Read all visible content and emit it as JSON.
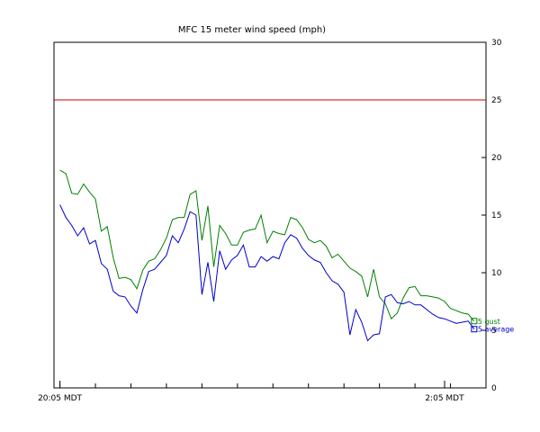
{
  "chart_data": {
    "type": "line",
    "title": "MFC 15 meter wind speed (mph)",
    "xlabel": "",
    "ylabel": "",
    "ylim": [
      0,
      30
    ],
    "y_ticks": [
      0,
      5,
      10,
      15,
      20,
      25,
      30
    ],
    "x_tick_labels": [
      "20:05 MDT",
      "2:05 MDT"
    ],
    "x_tick_index": [
      0,
      65
    ],
    "x_range": [
      -1,
      72
    ],
    "threshold": {
      "value": 25,
      "color": "#cc0000"
    },
    "series": [
      {
        "name": "gust",
        "legend_label": "5 gust",
        "color": "#008000",
        "values": [
          18.9,
          18.6,
          16.9,
          16.8,
          17.7,
          17.0,
          16.4,
          13.6,
          14.0,
          11.3,
          9.5,
          9.6,
          9.4,
          8.6,
          10.2,
          11.0,
          11.2,
          12.0,
          13.0,
          14.6,
          14.8,
          14.8,
          16.8,
          17.1,
          12.8,
          15.8,
          10.5,
          14.1,
          13.4,
          12.4,
          12.4,
          13.5,
          13.7,
          13.8,
          15.0,
          12.6,
          13.6,
          13.4,
          13.3,
          14.8,
          14.6,
          13.9,
          12.9,
          12.6,
          12.8,
          12.3,
          11.3,
          11.6,
          11.0,
          10.4,
          10.1,
          9.7,
          7.9,
          10.3,
          7.9,
          7.3,
          6.0,
          6.5,
          7.8,
          8.7,
          8.8,
          8.0,
          8.0,
          7.9,
          7.8,
          7.5,
          6.9,
          6.7,
          6.5,
          6.4,
          5.8
        ]
      },
      {
        "name": "average",
        "legend_label": "5 average",
        "color": "#0000cc",
        "values": [
          15.9,
          14.8,
          14.1,
          13.2,
          13.9,
          12.5,
          12.8,
          10.8,
          10.3,
          8.4,
          8.0,
          7.9,
          7.1,
          6.5,
          8.5,
          10.1,
          10.3,
          10.9,
          11.5,
          13.2,
          12.6,
          13.8,
          15.3,
          15.0,
          8.1,
          10.9,
          7.5,
          11.9,
          10.3,
          11.1,
          11.5,
          12.4,
          10.5,
          10.5,
          11.4,
          11.0,
          11.4,
          11.2,
          12.6,
          13.3,
          13.0,
          12.1,
          11.5,
          11.1,
          10.9,
          10.0,
          9.3,
          9.0,
          8.3,
          4.6,
          6.8,
          5.7,
          4.1,
          4.6,
          4.7,
          7.9,
          8.1,
          7.4,
          7.3,
          7.5,
          7.2,
          7.2,
          6.8,
          6.4,
          6.1,
          6.0,
          5.8,
          5.6,
          5.7,
          5.8,
          5.1
        ]
      }
    ],
    "x_minor_ticks_per_interval": 6
  }
}
